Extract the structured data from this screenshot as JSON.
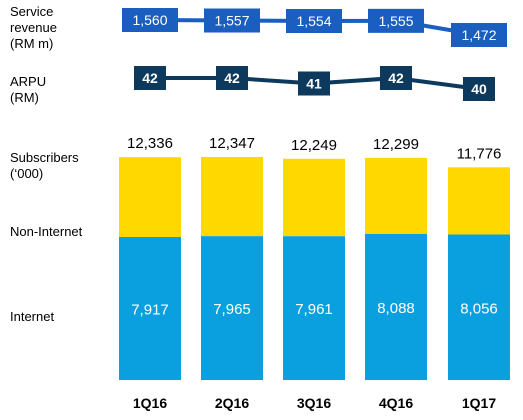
{
  "labels": {
    "service_revenue": [
      "Service",
      "revenue",
      "(RM m)"
    ],
    "arpu": [
      "ARPU",
      "(RM)"
    ],
    "subscribers": [
      "Subscribers",
      "(‘000)"
    ],
    "non_internet": "Non-Internet",
    "internet": "Internet"
  },
  "colors": {
    "revenue_line": "#1a5fbf",
    "revenue_box": "#1a5fbf",
    "arpu_line": "#0d3a5c",
    "arpu_box": "#0d3a5c",
    "internet_bar": "#0aa0e0",
    "non_internet_bar": "#ffd800"
  },
  "chart_data": [
    {
      "type": "line",
      "label": "Service revenue (RM m)",
      "categories": [
        "1Q16",
        "2Q16",
        "3Q16",
        "4Q16",
        "1Q17"
      ],
      "values": [
        1560,
        1557,
        1554,
        1555,
        1472
      ],
      "value_labels": [
        "1,560",
        "1,557",
        "1,554",
        "1,555",
        "1,472"
      ]
    },
    {
      "type": "line",
      "label": "ARPU (RM)",
      "categories": [
        "1Q16",
        "2Q16",
        "3Q16",
        "4Q16",
        "1Q17"
      ],
      "values": [
        42,
        42,
        41,
        42,
        40
      ],
      "value_labels": [
        "42",
        "42",
        "41",
        "42",
        "40"
      ]
    },
    {
      "type": "bar",
      "stacked": true,
      "label": "Subscribers ('000)",
      "categories": [
        "1Q16",
        "2Q16",
        "3Q16",
        "4Q16",
        "1Q17"
      ],
      "totals": [
        12336,
        12347,
        12249,
        12299,
        11776
      ],
      "total_labels": [
        "12,336",
        "12,347",
        "12,249",
        "12,299",
        "11,776"
      ],
      "series": [
        {
          "name": "Internet",
          "values": [
            7917,
            7965,
            7961,
            8088,
            8056
          ],
          "value_labels": [
            "7,917",
            "7,965",
            "7,961",
            "8,088",
            "8,056"
          ]
        },
        {
          "name": "Non-Internet",
          "values": [
            4419,
            4382,
            4288,
            4211,
            3720
          ]
        }
      ],
      "ylim": [
        0,
        12347
      ]
    }
  ]
}
